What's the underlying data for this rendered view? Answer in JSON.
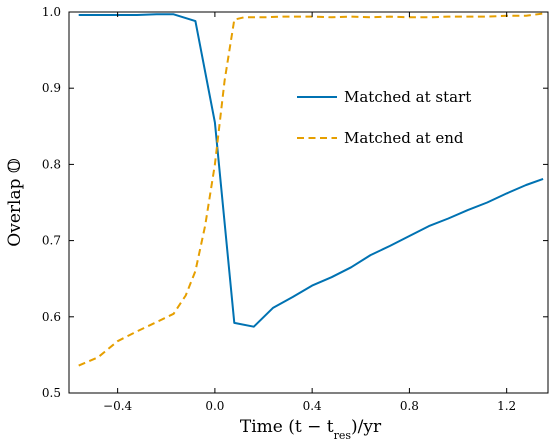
{
  "chart_data": {
    "type": "line",
    "xlabel": "Time (t − t",
    "xlabel_sub": "res",
    "xlabel_tail": ")/yr",
    "ylabel": "Overlap 𝕆",
    "xlim": [
      -0.6,
      1.37
    ],
    "ylim": [
      0.5,
      1.0
    ],
    "x_ticks": [
      -0.4,
      0.0,
      0.4,
      0.8,
      1.2
    ],
    "x_tick_labels": [
      "−0.4",
      "0.0",
      "0.4",
      "0.8",
      "1.2"
    ],
    "y_ticks": [
      0.5,
      0.6,
      0.7,
      0.8,
      0.9,
      1.0
    ],
    "y_tick_labels": [
      "0.5",
      "0.6",
      "0.7",
      "0.8",
      "0.9",
      "1.0"
    ],
    "grid": false,
    "legend_position": "upper-right",
    "series": [
      {
        "name": "Matched at start",
        "color": "#0072b2",
        "dash": "solid",
        "x": [
          -0.56,
          -0.48,
          -0.4,
          -0.32,
          -0.24,
          -0.17,
          -0.08,
          0.0,
          0.08,
          0.16,
          0.24,
          0.32,
          0.4,
          0.48,
          0.56,
          0.64,
          0.72,
          0.8,
          0.88,
          0.96,
          1.04,
          1.12,
          1.2,
          1.28,
          1.35
        ],
        "y": [
          0.996,
          0.996,
          0.996,
          0.996,
          0.997,
          0.997,
          0.988,
          0.855,
          0.592,
          0.587,
          0.612,
          0.626,
          0.641,
          0.652,
          0.665,
          0.681,
          0.693,
          0.706,
          0.719,
          0.729,
          0.74,
          0.75,
          0.762,
          0.773,
          0.781
        ]
      },
      {
        "name": "Matched at end",
        "color": "#e69f00",
        "dash": "dashed",
        "x": [
          -0.56,
          -0.48,
          -0.4,
          -0.32,
          -0.24,
          -0.17,
          -0.12,
          -0.08,
          -0.04,
          0.0,
          0.04,
          0.08,
          0.12,
          0.2,
          0.28,
          0.4,
          0.48,
          0.56,
          0.64,
          0.72,
          0.8,
          0.88,
          0.96,
          1.04,
          1.12,
          1.2,
          1.28,
          1.35
        ],
        "y": [
          0.536,
          0.547,
          0.568,
          0.581,
          0.593,
          0.604,
          0.628,
          0.66,
          0.72,
          0.8,
          0.91,
          0.99,
          0.993,
          0.993,
          0.994,
          0.994,
          0.993,
          0.994,
          0.993,
          0.994,
          0.993,
          0.993,
          0.994,
          0.994,
          0.994,
          0.995,
          0.995,
          0.998
        ]
      }
    ]
  }
}
